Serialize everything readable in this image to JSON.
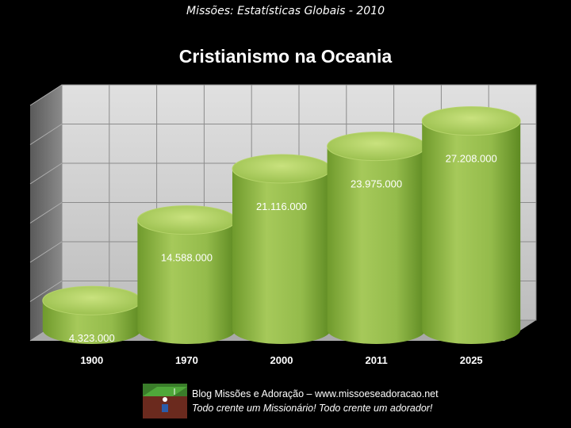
{
  "header": {
    "title": "Missões: Estatísticas Globais - 2010"
  },
  "chart_data": {
    "type": "bar",
    "title": "Cristianismo na Oceania",
    "categories": [
      "1900",
      "1970",
      "2000",
      "2011",
      "2025"
    ],
    "values": [
      4323000,
      14588000,
      21116000,
      23975000,
      27208000
    ],
    "data_labels": [
      "4.323.000",
      "14.588.000",
      "21.116.000",
      "23.975.000",
      "27.208.000"
    ],
    "ylim": [
      0,
      30000000
    ],
    "grid": true,
    "legend": "none",
    "style": "3d-cylinder",
    "colors": {
      "bar": "#9bc04f",
      "bar_dark": "#5f8a22",
      "bar_top": "#c6e07a",
      "grid": "#8c8c8c",
      "wall": "#cfcfcf"
    }
  },
  "footer": {
    "line1": "Blog Missões e Adoração – www.missoeseadoracao.net",
    "line2": "Todo crente um Missionário! Todo crente um adorador!"
  }
}
